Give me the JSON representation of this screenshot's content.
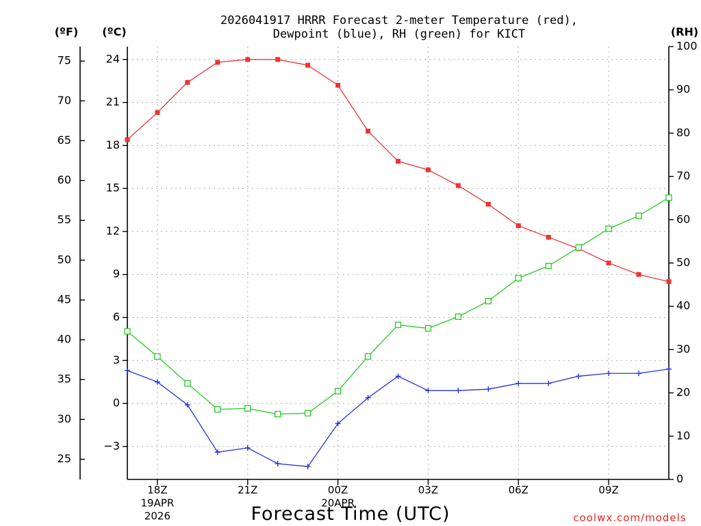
{
  "title": {
    "line1": "2026041917 HRRR Forecast 2-meter Temperature (red),",
    "line2": "Dewpoint (blue), RH (green) for KICT"
  },
  "axes": {
    "f_unit": "(ºF)",
    "c_unit": "(ºC)",
    "rh_unit": "(RH)",
    "x_label": "Forecast Time (UTC)"
  },
  "credit": "coolwx.com/models",
  "colors": {
    "temperature": "#ee3333",
    "dewpoint": "#2233dd",
    "rh": "#22cc22"
  },
  "chart_data": {
    "type": "line",
    "title": "2026041917 HRRR Forecast 2-meter Temperature (red), Dewpoint (blue), RH (green) for KICT",
    "xlabel": "Forecast Time (UTC)",
    "x_hours_utc": [
      17,
      18,
      19,
      20,
      21,
      22,
      23,
      24,
      25,
      26,
      27,
      28,
      29,
      30,
      31,
      32,
      33,
      34,
      35
    ],
    "x_range_hours": [
      17,
      35
    ],
    "x_ticks": [
      {
        "hour": 18,
        "label": "18Z",
        "date": "19APR",
        "year": "2026"
      },
      {
        "hour": 21,
        "label": "21Z"
      },
      {
        "hour": 24,
        "label": "00Z",
        "date": "20APR"
      },
      {
        "hour": 27,
        "label": "03Z"
      },
      {
        "hour": 30,
        "label": "06Z"
      },
      {
        "hour": 33,
        "label": "09Z"
      }
    ],
    "y_celsius": {
      "range": [
        -5.3,
        24.9
      ],
      "ticks": [
        -3,
        0,
        3,
        6,
        9,
        12,
        15,
        18,
        21,
        24
      ],
      "tick_labels": [
        "−3",
        "0",
        "3",
        "6",
        "9",
        "12",
        "15",
        "18",
        "21",
        "24"
      ]
    },
    "y_fahrenheit": {
      "ticks": [
        25,
        30,
        35,
        40,
        45,
        50,
        55,
        60,
        65,
        70,
        75
      ],
      "tick_labels": [
        "25",
        "30",
        "35",
        "40",
        "45",
        "50",
        "55",
        "60",
        "65",
        "70",
        "75"
      ]
    },
    "y_rh": {
      "range": [
        0,
        100
      ],
      "ticks": [
        0,
        10,
        20,
        30,
        40,
        50,
        60,
        70,
        80,
        90,
        100
      ],
      "tick_labels": [
        "0",
        "10",
        "20",
        "30",
        "40",
        "50",
        "60",
        "70",
        "80",
        "90",
        "100"
      ]
    },
    "series": [
      {
        "name": "Temperature",
        "unit": "°C",
        "axis": "celsius",
        "marker": "filled-square",
        "values": [
          18.4,
          20.3,
          22.4,
          23.8,
          24.0,
          24.0,
          23.6,
          22.2,
          19.0,
          16.9,
          16.3,
          15.2,
          13.9,
          12.4,
          11.6,
          10.8,
          9.8,
          9.0,
          8.5
        ]
      },
      {
        "name": "Dewpoint",
        "unit": "°C",
        "axis": "celsius",
        "marker": "plus",
        "values": [
          2.3,
          1.5,
          -0.1,
          -3.4,
          -3.1,
          -4.2,
          -4.4,
          -1.4,
          0.4,
          1.9,
          0.9,
          0.9,
          1.0,
          1.4,
          1.4,
          1.9,
          2.1,
          2.1,
          2.4
        ]
      },
      {
        "name": "Relative Humidity",
        "unit": "%",
        "axis": "rh",
        "marker": "open-square",
        "values": [
          34.2,
          28.4,
          22.2,
          16.2,
          16.4,
          15.1,
          15.3,
          20.4,
          28.4,
          35.7,
          34.9,
          37.6,
          41.2,
          46.5,
          49.3,
          53.6,
          57.9,
          60.9,
          65.1
        ]
      }
    ]
  }
}
